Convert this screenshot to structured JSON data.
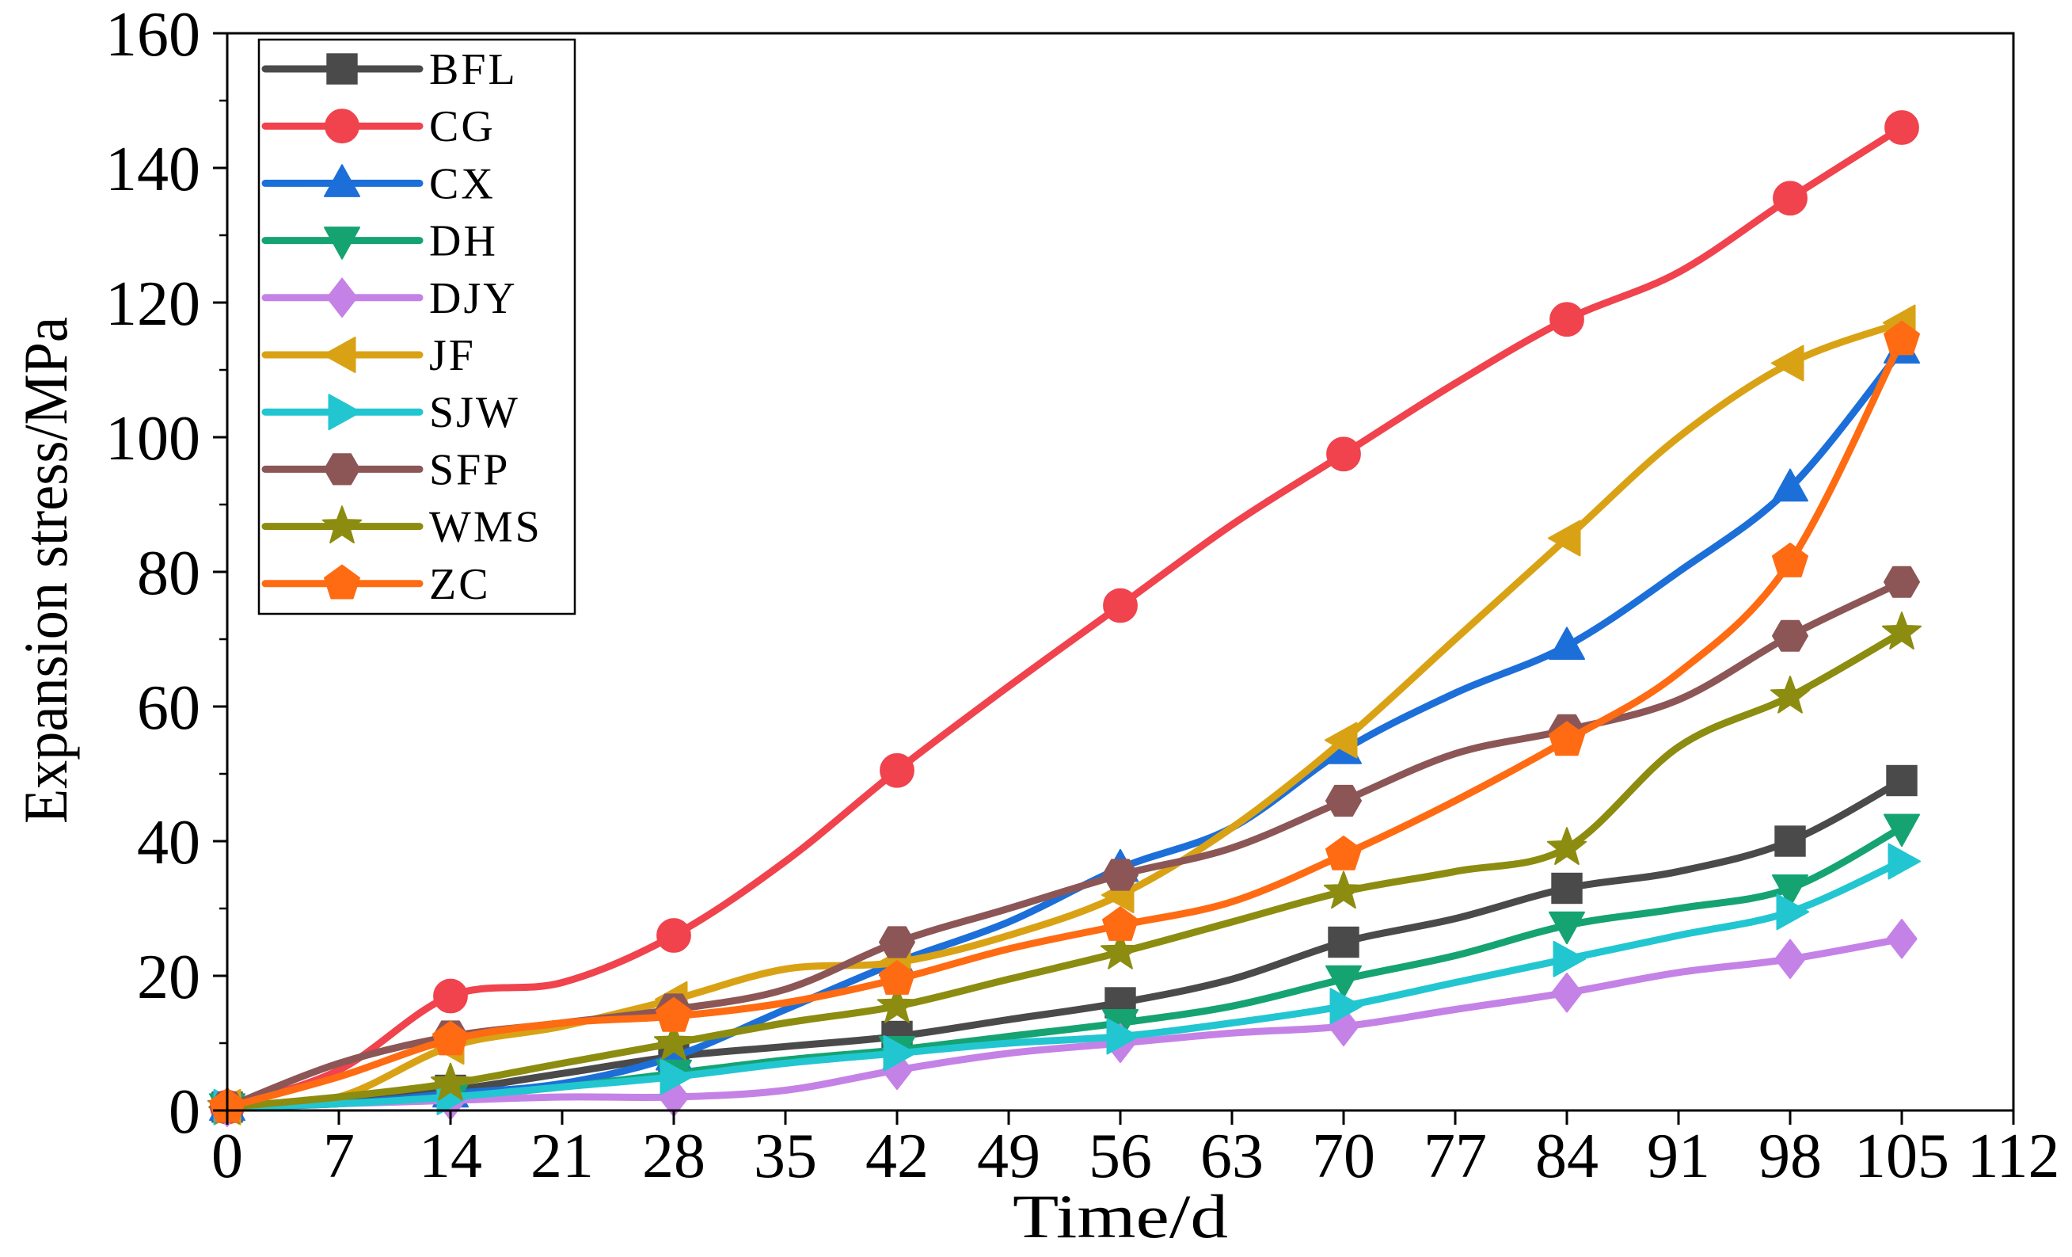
{
  "chart_data": {
    "type": "line",
    "title": "",
    "xlabel": "Time/d",
    "ylabel": "Expansion stress/MPa",
    "xlim": [
      0,
      112
    ],
    "ylim": [
      0,
      160
    ],
    "xticks": [
      0,
      7,
      14,
      21,
      28,
      35,
      42,
      49,
      56,
      63,
      70,
      77,
      84,
      91,
      98,
      105,
      112
    ],
    "yticks": [
      0,
      20,
      40,
      60,
      80,
      100,
      120,
      140,
      160
    ],
    "grid": false,
    "legend": "top-left",
    "x": [
      0,
      7,
      14,
      21,
      28,
      35,
      42,
      49,
      56,
      63,
      70,
      77,
      84,
      91,
      98,
      105
    ],
    "marker_x": [
      0,
      14,
      28,
      42,
      56,
      70,
      84,
      98,
      105
    ],
    "series": [
      {
        "name": "BFL",
        "color": "#4a4a4a",
        "marker": "square",
        "values": [
          0.5,
          1.5,
          3,
          5.5,
          8,
          9.5,
          11,
          13.5,
          16,
          19.5,
          25,
          28.5,
          33,
          35.5,
          40,
          49
        ]
      },
      {
        "name": "CG",
        "color": "#f0434d",
        "marker": "circle",
        "values": [
          0.5,
          6,
          17,
          19,
          26,
          37,
          50.5,
          63,
          75,
          87,
          97.5,
          108,
          117.5,
          124.5,
          135.5,
          146
        ]
      },
      {
        "name": "CX",
        "color": "#1c6fd8",
        "marker": "triangle-up",
        "values": [
          0.5,
          1,
          2.5,
          4,
          8,
          15,
          22,
          28,
          36,
          42,
          53.5,
          62,
          69,
          80,
          92.5,
          113
        ]
      },
      {
        "name": "DH",
        "color": "#15a372",
        "marker": "triangle-down",
        "values": [
          0.5,
          1,
          2,
          3.5,
          5.5,
          7.5,
          9,
          11,
          13,
          15.5,
          19.5,
          23,
          27.5,
          30,
          33,
          42
        ]
      },
      {
        "name": "DJY",
        "color": "#c582e6",
        "marker": "diamond",
        "values": [
          0.5,
          1,
          1.5,
          2,
          2,
          3,
          6,
          8.5,
          10,
          11.5,
          12.5,
          15,
          17.5,
          20.5,
          22.5,
          25.5
        ]
      },
      {
        "name": "JF",
        "color": "#d9a215",
        "marker": "triangle-left",
        "values": [
          0.5,
          2,
          9.5,
          12.5,
          16.5,
          21,
          22,
          26,
          32,
          42,
          55,
          70,
          85,
          100,
          111,
          117
        ]
      },
      {
        "name": "SJW",
        "color": "#22c6d1",
        "marker": "triangle-right",
        "values": [
          0.5,
          1,
          2,
          3.5,
          5,
          7,
          8.5,
          10,
          11,
          13,
          15.5,
          19,
          22.5,
          26,
          29.5,
          37
        ]
      },
      {
        "name": "SFP",
        "color": "#8c5656",
        "marker": "hexagon",
        "values": [
          0.5,
          7,
          11,
          13,
          15,
          18,
          25,
          30,
          35,
          39,
          46,
          53,
          56.5,
          61,
          70.5,
          78.5
        ]
      },
      {
        "name": "WMS",
        "color": "#8c8c10",
        "marker": "star",
        "values": [
          0.5,
          2,
          4,
          7,
          10,
          13,
          15.5,
          19.5,
          23.5,
          28,
          32.5,
          35.5,
          39,
          54,
          61.5,
          71
        ]
      },
      {
        "name": "ZC",
        "color": "#ff6b12",
        "marker": "pentagon",
        "values": [
          0.5,
          5,
          10.5,
          13,
          14,
          16,
          19.5,
          24,
          27.5,
          31,
          38,
          46,
          55,
          65,
          81.5,
          114.5
        ]
      }
    ]
  }
}
